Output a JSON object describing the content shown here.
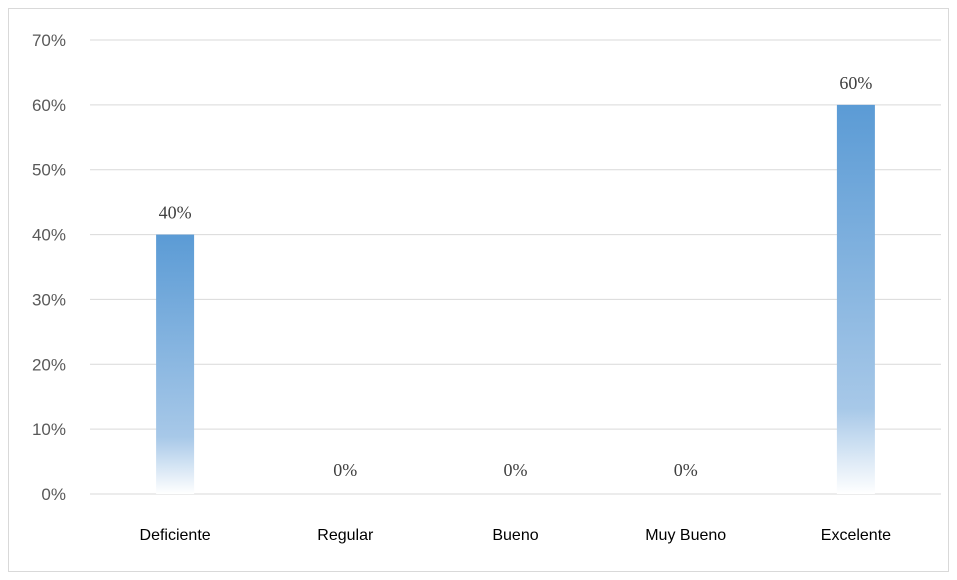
{
  "chart_data": {
    "type": "bar",
    "categories": [
      "Deficiente",
      "Regular",
      "Bueno",
      "Muy Bueno",
      "Excelente"
    ],
    "values": [
      40,
      0,
      0,
      0,
      60
    ],
    "data_labels": [
      "40%",
      "0%",
      "0%",
      "0%",
      "60%"
    ],
    "title": "",
    "xlabel": "",
    "ylabel": "",
    "ylim": [
      0,
      70
    ],
    "yticks": [
      0,
      10,
      20,
      30,
      40,
      50,
      60,
      70
    ],
    "ytick_labels": [
      "0%",
      "10%",
      "20%",
      "30%",
      "40%",
      "50%",
      "60%",
      "70%"
    ],
    "grid": true,
    "legend": "none",
    "colors": {
      "bar_top": "#5b9bd5",
      "bar_bottom": "#ffffff",
      "grid": "#d9d9d9",
      "axis_text": "#595959"
    }
  }
}
